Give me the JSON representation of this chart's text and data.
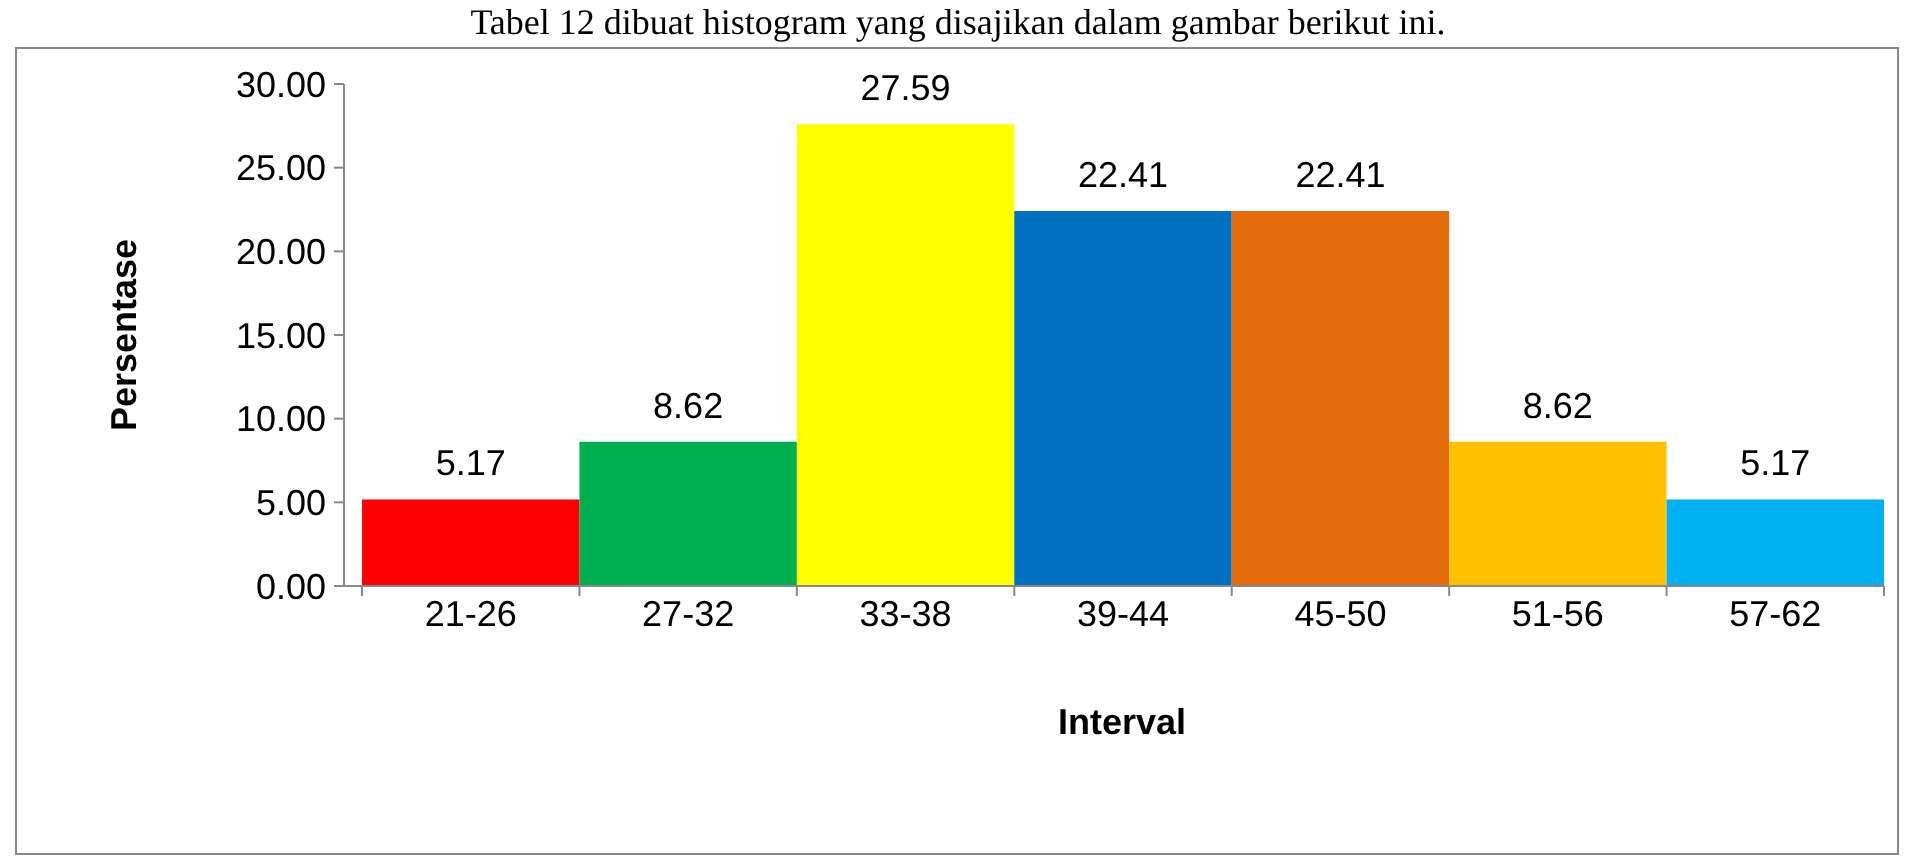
{
  "chart_data": {
    "type": "bar",
    "title": "Tabel 12 dibuat histogram yang disajikan dalam gambar berikut ini.",
    "xlabel": "Interval",
    "ylabel": "Persentase",
    "categories": [
      "21-26",
      "27-32",
      "33-38",
      "39-44",
      "45-50",
      "51-56",
      "57-62"
    ],
    "values": [
      5.17,
      8.62,
      27.59,
      22.41,
      22.41,
      8.62,
      5.17
    ],
    "colors": [
      "#ff0000",
      "#00b050",
      "#ffff00",
      "#0070c0",
      "#e46c0a",
      "#ffc000",
      "#00b0f0"
    ],
    "ylim": [
      0,
      30
    ],
    "yticks": [
      {
        "value": 0,
        "label": "0.00"
      },
      {
        "value": 5,
        "label": "5.00"
      },
      {
        "value": 10,
        "label": "10.00"
      },
      {
        "value": 15,
        "label": "15.00"
      },
      {
        "value": 20,
        "label": "20.00"
      },
      {
        "value": 25,
        "label": "25.00"
      },
      {
        "value": 30,
        "label": "30.00"
      }
    ],
    "data_labels": true,
    "grid": false
  }
}
